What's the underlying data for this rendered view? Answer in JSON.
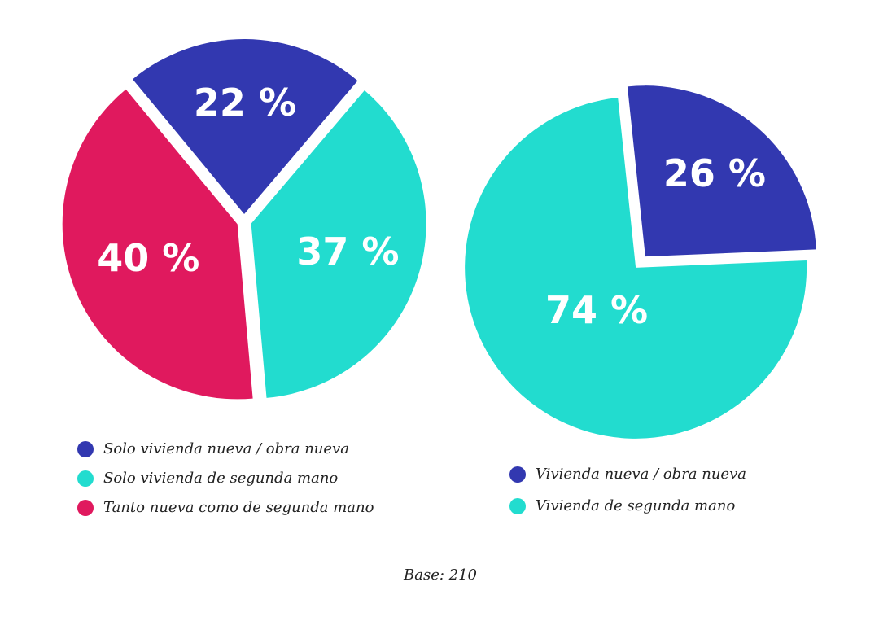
{
  "chart_data": [
    {
      "type": "pie",
      "categories": [
        "Solo vivienda nueva / obra nueva",
        "Solo vivienda de segunda mano",
        "Tanto nueva como de segunda mano"
      ],
      "values": [
        22,
        37,
        40
      ],
      "value_labels": [
        "22 %",
        "37 %",
        "40 %"
      ],
      "colors": [
        "#3238b0",
        "#22dccf",
        "#e0195e"
      ]
    },
    {
      "type": "pie",
      "categories": [
        "Vivienda nueva / obra nueva",
        "Vivienda de segunda mano"
      ],
      "values": [
        26,
        74
      ],
      "value_labels": [
        "26 %",
        "74 %"
      ],
      "colors": [
        "#3238b0",
        "#22dccf"
      ]
    }
  ],
  "note": "Base: 210"
}
